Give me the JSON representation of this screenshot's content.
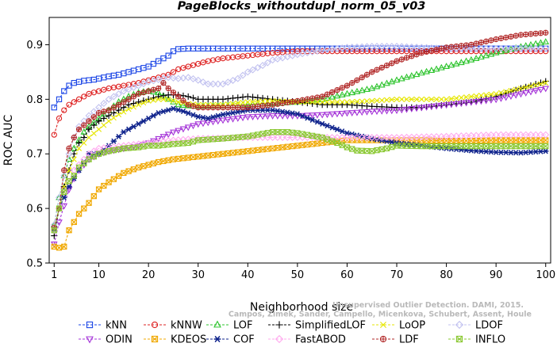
{
  "chart_data": {
    "type": "line",
    "title": "PageBlocks_withoutdupl_norm_05_v03",
    "xlabel": "Neighborhood size",
    "ylabel": "ROC AUC",
    "xlim": [
      0,
      101
    ],
    "ylim": [
      0.5,
      0.95
    ],
    "xticks": [
      1,
      10,
      20,
      30,
      40,
      50,
      60,
      70,
      80,
      90,
      100
    ],
    "yticks": [
      0.5,
      0.6,
      0.7,
      0.8,
      0.9
    ],
    "grid": false,
    "legend_position": "bottom",
    "series": [
      {
        "name": "kNN",
        "color": "#1a45e6",
        "marker": "square",
        "x": [
          1,
          2,
          3,
          4,
          5,
          6,
          7,
          8,
          9,
          10,
          12,
          14,
          16,
          18,
          20,
          22,
          24,
          25,
          26,
          28,
          30,
          35,
          40,
          50,
          60,
          70,
          80,
          90,
          100
        ],
        "y": [
          0.785,
          0.8,
          0.815,
          0.825,
          0.83,
          0.832,
          0.834,
          0.835,
          0.836,
          0.838,
          0.842,
          0.845,
          0.85,
          0.855,
          0.86,
          0.87,
          0.88,
          0.888,
          0.892,
          0.893,
          0.893,
          0.893,
          0.893,
          0.893,
          0.893,
          0.893,
          0.893,
          0.893,
          0.893
        ]
      },
      {
        "name": "kNNW",
        "color": "#dd2020",
        "marker": "circle",
        "x": [
          1,
          2,
          3,
          4,
          5,
          6,
          7,
          8,
          10,
          12,
          15,
          18,
          20,
          22,
          24,
          26,
          28,
          30,
          32,
          35,
          40,
          45,
          50,
          60,
          70,
          80,
          90,
          100
        ],
        "y": [
          0.735,
          0.765,
          0.78,
          0.79,
          0.795,
          0.8,
          0.805,
          0.81,
          0.815,
          0.82,
          0.825,
          0.83,
          0.835,
          0.84,
          0.845,
          0.855,
          0.86,
          0.865,
          0.87,
          0.875,
          0.88,
          0.885,
          0.888,
          0.888,
          0.888,
          0.888,
          0.888,
          0.888
        ]
      },
      {
        "name": "LOF",
        "color": "#2ec42e",
        "marker": "triangle-up",
        "x": [
          1,
          2,
          3,
          4,
          5,
          6,
          7,
          8,
          10,
          12,
          14,
          16,
          18,
          20,
          22,
          24,
          25,
          26,
          28,
          30,
          35,
          40,
          45,
          50,
          55,
          60,
          65,
          70,
          75,
          80,
          85,
          90,
          95,
          100
        ],
        "y": [
          0.57,
          0.62,
          0.66,
          0.69,
          0.71,
          0.725,
          0.74,
          0.75,
          0.765,
          0.78,
          0.795,
          0.805,
          0.812,
          0.815,
          0.812,
          0.8,
          0.795,
          0.79,
          0.788,
          0.787,
          0.788,
          0.79,
          0.792,
          0.795,
          0.8,
          0.81,
          0.82,
          0.835,
          0.848,
          0.86,
          0.872,
          0.885,
          0.896,
          0.905
        ]
      },
      {
        "name": "SimplifiedLOF",
        "color": "#000000",
        "marker": "plus",
        "x": [
          1,
          2,
          3,
          4,
          5,
          6,
          7,
          8,
          10,
          12,
          14,
          16,
          18,
          20,
          22,
          24,
          26,
          28,
          30,
          35,
          40,
          45,
          50,
          55,
          60,
          65,
          70,
          75,
          80,
          85,
          90,
          95,
          100
        ],
        "y": [
          0.55,
          0.6,
          0.64,
          0.67,
          0.7,
          0.72,
          0.73,
          0.745,
          0.76,
          0.77,
          0.78,
          0.79,
          0.795,
          0.8,
          0.805,
          0.808,
          0.808,
          0.805,
          0.8,
          0.8,
          0.805,
          0.8,
          0.795,
          0.79,
          0.79,
          0.787,
          0.785,
          0.785,
          0.79,
          0.795,
          0.805,
          0.82,
          0.833
        ]
      },
      {
        "name": "LoOP",
        "color": "#e6e600",
        "marker": "x",
        "x": [
          1,
          2,
          3,
          4,
          5,
          6,
          8,
          10,
          12,
          14,
          16,
          18,
          20,
          22,
          24,
          26,
          28,
          30,
          35,
          40,
          45,
          50,
          55,
          60,
          65,
          70,
          75,
          80,
          85,
          90,
          95,
          100
        ],
        "y": [
          0.56,
          0.6,
          0.64,
          0.67,
          0.69,
          0.71,
          0.73,
          0.745,
          0.76,
          0.772,
          0.782,
          0.79,
          0.797,
          0.8,
          0.8,
          0.795,
          0.792,
          0.79,
          0.79,
          0.795,
          0.797,
          0.795,
          0.795,
          0.795,
          0.797,
          0.8,
          0.8,
          0.8,
          0.805,
          0.81,
          0.82,
          0.83
        ]
      },
      {
        "name": "LDOF",
        "color": "#c2c2f0",
        "marker": "diamond",
        "x": [
          1,
          2,
          3,
          4,
          5,
          6,
          8,
          10,
          12,
          15,
          18,
          20,
          22,
          24,
          26,
          28,
          30,
          32,
          35,
          38,
          40,
          43,
          45,
          48,
          50,
          55,
          60,
          65,
          70,
          75,
          80,
          85,
          90,
          95,
          100
        ],
        "y": [
          0.57,
          0.62,
          0.66,
          0.7,
          0.73,
          0.75,
          0.77,
          0.785,
          0.8,
          0.815,
          0.825,
          0.832,
          0.836,
          0.84,
          0.838,
          0.84,
          0.835,
          0.828,
          0.828,
          0.838,
          0.85,
          0.862,
          0.872,
          0.878,
          0.882,
          0.89,
          0.895,
          0.897,
          0.897,
          0.895,
          0.893,
          0.893,
          0.893,
          0.893,
          0.893
        ]
      },
      {
        "name": "ODIN",
        "color": "#a535d8",
        "marker": "triangle-down",
        "x": [
          1,
          2,
          3,
          4,
          5,
          6,
          7,
          8,
          10,
          12,
          15,
          18,
          20,
          25,
          30,
          35,
          40,
          45,
          50,
          55,
          60,
          65,
          70,
          75,
          80,
          85,
          90,
          95,
          100
        ],
        "y": [
          0.535,
          0.575,
          0.605,
          0.635,
          0.655,
          0.67,
          0.68,
          0.69,
          0.7,
          0.705,
          0.71,
          0.715,
          0.72,
          0.74,
          0.755,
          0.762,
          0.768,
          0.77,
          0.77,
          0.772,
          0.775,
          0.778,
          0.78,
          0.785,
          0.79,
          0.795,
          0.8,
          0.81,
          0.82
        ]
      },
      {
        "name": "KDEOS",
        "color": "#f0a800",
        "marker": "square-x",
        "x": [
          1,
          2,
          3,
          4,
          5,
          6,
          8,
          10,
          12,
          15,
          18,
          20,
          22,
          25,
          30,
          35,
          40,
          45,
          50,
          55,
          60,
          65,
          70,
          75,
          80,
          85,
          90,
          95,
          100
        ],
        "y": [
          0.53,
          0.528,
          0.53,
          0.56,
          0.575,
          0.59,
          0.61,
          0.635,
          0.648,
          0.665,
          0.675,
          0.68,
          0.685,
          0.69,
          0.695,
          0.7,
          0.705,
          0.71,
          0.715,
          0.72,
          0.725,
          0.725,
          0.725,
          0.725,
          0.724,
          0.724,
          0.725,
          0.725,
          0.725
        ]
      },
      {
        "name": "COF",
        "color": "#0f238c",
        "marker": "asterisk",
        "x": [
          1,
          2,
          3,
          4,
          5,
          6,
          8,
          10,
          12,
          15,
          18,
          20,
          22,
          25,
          27,
          30,
          32,
          35,
          40,
          45,
          50,
          55,
          60,
          65,
          70,
          75,
          80,
          85,
          90,
          95,
          100
        ],
        "y": [
          0.56,
          0.6,
          0.62,
          0.64,
          0.655,
          0.67,
          0.7,
          0.7,
          0.715,
          0.74,
          0.755,
          0.765,
          0.775,
          0.783,
          0.778,
          0.768,
          0.765,
          0.772,
          0.78,
          0.78,
          0.773,
          0.755,
          0.738,
          0.728,
          0.72,
          0.715,
          0.71,
          0.706,
          0.703,
          0.702,
          0.705
        ]
      },
      {
        "name": "FastABOD",
        "color": "#ffaaee",
        "marker": "diamond",
        "x": [
          1,
          2,
          3,
          5,
          8,
          10,
          15,
          20,
          25,
          30,
          40,
          50,
          60,
          70,
          80,
          90,
          100
        ],
        "y": [
          0.56,
          0.6,
          0.63,
          0.67,
          0.7,
          0.71,
          0.715,
          0.72,
          0.725,
          0.728,
          0.73,
          0.73,
          0.73,
          0.73,
          0.732,
          0.735,
          0.735
        ]
      },
      {
        "name": "LDF",
        "color": "#b22a2a",
        "marker": "circle-plus",
        "x": [
          1,
          2,
          3,
          4,
          5,
          6,
          8,
          10,
          12,
          14,
          16,
          18,
          20,
          22,
          23,
          24,
          26,
          28,
          30,
          35,
          40,
          45,
          50,
          55,
          60,
          65,
          70,
          75,
          80,
          85,
          90,
          95,
          100
        ],
        "y": [
          0.565,
          0.6,
          0.67,
          0.71,
          0.73,
          0.745,
          0.76,
          0.775,
          0.78,
          0.79,
          0.8,
          0.81,
          0.815,
          0.82,
          0.83,
          0.82,
          0.805,
          0.79,
          0.785,
          0.785,
          0.785,
          0.79,
          0.797,
          0.805,
          0.825,
          0.85,
          0.87,
          0.885,
          0.895,
          0.9,
          0.91,
          0.918,
          0.922
        ]
      },
      {
        "name": "INFLO",
        "color": "#8ac832",
        "marker": "square-x",
        "x": [
          1,
          2,
          3,
          4,
          5,
          6,
          8,
          10,
          12,
          15,
          18,
          20,
          22,
          25,
          28,
          30,
          35,
          40,
          45,
          48,
          50,
          55,
          58,
          60,
          62,
          65,
          68,
          70,
          75,
          80,
          85,
          90,
          95,
          100
        ],
        "y": [
          0.56,
          0.6,
          0.63,
          0.65,
          0.66,
          0.675,
          0.69,
          0.7,
          0.705,
          0.71,
          0.712,
          0.715,
          0.715,
          0.718,
          0.72,
          0.725,
          0.728,
          0.732,
          0.74,
          0.74,
          0.738,
          0.73,
          0.72,
          0.712,
          0.706,
          0.705,
          0.71,
          0.715,
          0.714,
          0.714,
          0.714,
          0.714,
          0.714,
          0.714
        ]
      }
    ],
    "annotation_lines": [
      "Campos, Zimek, Sander, Campello, Micenkova, Schubert, Assent, Houle",
      "Unsupervised Outlier Detection. DAMI, 2015."
    ],
    "legend_rows": [
      [
        "kNN",
        "kNNW",
        "LOF",
        "SimplifiedLOF",
        "LoOP",
        "LDOF"
      ],
      [
        "ODIN",
        "KDEOS",
        "COF",
        "FastABOD",
        "LDF",
        "INFLO"
      ]
    ]
  }
}
